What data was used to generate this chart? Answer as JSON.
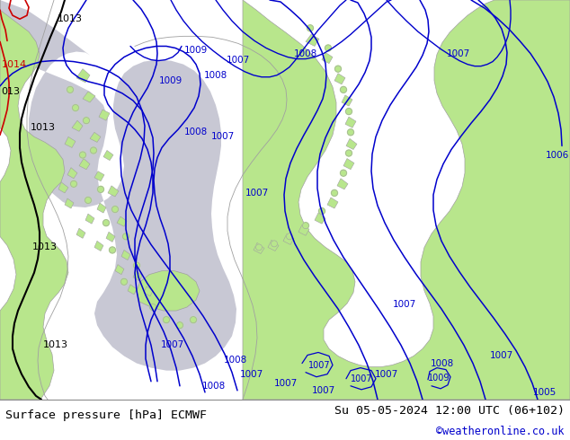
{
  "title_left": "Surface pressure [hPa] ECMWF",
  "title_right": "Su 05-05-2024 12:00 UTC (06+102)",
  "credit": "©weatheronline.co.uk",
  "land_color": "#b8e68c",
  "sea_color": "#c8c8d4",
  "footer_bg": "#ffffff",
  "footer_text_color": "#000000",
  "credit_color": "#0000cc",
  "blue": "#0000cc",
  "black": "#000000",
  "red": "#cc0000",
  "gray_coast": "#a0a0a0",
  "figsize": [
    6.34,
    4.9
  ],
  "dpi": 100
}
